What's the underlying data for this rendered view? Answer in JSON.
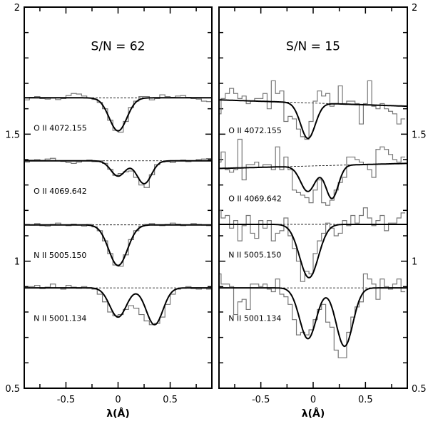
{
  "chart_data": [
    {
      "type": "line",
      "title": "S/N = 62",
      "xlabel": "λ(Å)",
      "xlim": [
        -0.9,
        0.9
      ],
      "ylim": [
        0.5,
        2
      ],
      "xticks": [
        "-0.5",
        "0",
        "0.5"
      ],
      "yticks": [
        "0.5",
        "1",
        "1.5",
        "2"
      ],
      "grid": false,
      "bin_width": 0.05,
      "spectra": [
        {
          "label": "O II 4072.155",
          "continuum": [
            1.643,
            1.643
          ],
          "fit_lines": [
            {
              "center": 0.0,
              "depth": 0.13,
              "sigma": 0.085
            }
          ],
          "observed": [
            1.635,
            1.645,
            1.648,
            1.64,
            1.638,
            1.642,
            1.636,
            1.64,
            1.652,
            1.66,
            1.658,
            1.65,
            1.642,
            1.637,
            1.625,
            1.6,
            1.555,
            1.515,
            1.508,
            1.55,
            1.605,
            1.63,
            1.648,
            1.648,
            1.635,
            1.64,
            1.655,
            1.648,
            1.645,
            1.65,
            1.652,
            1.645,
            1.64,
            1.638,
            1.63,
            1.628
          ]
        },
        {
          "label": "O II 4069.642",
          "continuum": [
            1.395,
            1.395
          ],
          "fit_lines": [
            {
              "center": 0.0,
              "depth": 0.06,
              "sigma": 0.07
            },
            {
              "center": 0.25,
              "depth": 0.09,
              "sigma": 0.07
            }
          ],
          "observed": [
            1.39,
            1.398,
            1.4,
            1.397,
            1.402,
            1.405,
            1.395,
            1.393,
            1.388,
            1.385,
            1.39,
            1.395,
            1.398,
            1.392,
            1.395,
            1.385,
            1.362,
            1.338,
            1.345,
            1.352,
            1.355,
            1.33,
            1.3,
            1.29,
            1.34,
            1.38,
            1.39,
            1.392,
            1.388,
            1.396,
            1.398,
            1.392,
            1.395,
            1.4,
            1.402,
            1.404
          ]
        },
        {
          "label": "N II 5005.150",
          "continuum": [
            1.143,
            1.143
          ],
          "fit_lines": [
            {
              "center": 0.0,
              "depth": 0.16,
              "sigma": 0.09
            }
          ],
          "observed": [
            1.145,
            1.142,
            1.148,
            1.14,
            1.138,
            1.145,
            1.15,
            1.143,
            1.14,
            1.146,
            1.142,
            1.138,
            1.145,
            1.135,
            1.12,
            1.08,
            1.03,
            0.985,
            0.98,
            1.025,
            1.085,
            1.12,
            1.138,
            1.145,
            1.148,
            1.142,
            1.14,
            1.145,
            1.15,
            1.146,
            1.14,
            1.143,
            1.148,
            1.145,
            1.142,
            1.14
          ]
        },
        {
          "label": "N II 5001.134",
          "continuum": [
            0.895,
            0.895
          ],
          "fit_lines": [
            {
              "center": 0.0,
              "depth": 0.115,
              "sigma": 0.08
            },
            {
              "center": 0.35,
              "depth": 0.145,
              "sigma": 0.08
            }
          ],
          "observed": [
            0.895,
            0.9,
            0.905,
            0.892,
            0.898,
            0.91,
            0.895,
            0.89,
            0.905,
            0.898,
            0.893,
            0.9,
            0.896,
            0.89,
            0.87,
            0.84,
            0.8,
            0.785,
            0.79,
            0.81,
            0.825,
            0.815,
            0.79,
            0.765,
            0.75,
            0.755,
            0.78,
            0.83,
            0.87,
            0.89,
            0.895,
            0.9,
            0.892,
            0.89,
            0.893,
            0.89
          ]
        }
      ]
    },
    {
      "type": "line",
      "title": "S/N = 15",
      "xlabel": "λ(Å)",
      "xlim": [
        -0.9,
        0.9
      ],
      "ylim": [
        0.5,
        2
      ],
      "xticks": [
        "-0.5",
        "0",
        "0.5"
      ],
      "yticks": [
        "0.5",
        "1",
        "1.5",
        "2"
      ],
      "grid": false,
      "bin_width": 0.04,
      "spectra": [
        {
          "label": "O II 4072.155",
          "continuum": [
            1.635,
            1.61
          ],
          "fit_lines": [
            {
              "center": -0.05,
              "depth": 0.14,
              "sigma": 0.07
            }
          ],
          "observed": [
            1.58,
            1.64,
            1.66,
            1.68,
            1.66,
            1.64,
            1.65,
            1.62,
            1.63,
            1.64,
            1.64,
            1.66,
            1.6,
            1.71,
            1.66,
            1.67,
            1.55,
            1.57,
            1.56,
            1.52,
            1.49,
            1.48,
            1.55,
            1.63,
            1.67,
            1.65,
            1.66,
            1.61,
            1.62,
            1.69,
            1.62,
            1.63,
            1.63,
            1.62,
            1.54,
            1.62,
            1.71,
            1.61,
            1.6,
            1.62,
            1.6,
            1.59,
            1.58,
            1.54,
            1.56
          ]
        },
        {
          "label": "O II 4069.642",
          "continuum": [
            1.365,
            1.385
          ],
          "fit_lines": [
            {
              "center": -0.05,
              "depth": 0.1,
              "sigma": 0.07
            },
            {
              "center": 0.18,
              "depth": 0.13,
              "sigma": 0.06
            }
          ],
          "observed": [
            1.39,
            1.43,
            1.36,
            1.35,
            1.36,
            1.48,
            1.32,
            1.38,
            1.38,
            1.39,
            1.37,
            1.38,
            1.38,
            1.36,
            1.45,
            1.36,
            1.41,
            1.36,
            1.28,
            1.27,
            1.26,
            1.25,
            1.23,
            1.28,
            1.32,
            1.23,
            1.22,
            1.24,
            1.28,
            1.31,
            1.33,
            1.41,
            1.41,
            1.4,
            1.39,
            1.38,
            1.36,
            1.33,
            1.44,
            1.45,
            1.44,
            1.42,
            1.4,
            1.39,
            1.41
          ]
        },
        {
          "label": "N II 5005.150",
          "continuum": [
            1.145,
            1.145
          ],
          "fit_lines": [
            {
              "center": -0.04,
              "depth": 0.21,
              "sigma": 0.09
            }
          ],
          "observed": [
            1.2,
            1.17,
            1.18,
            1.13,
            1.16,
            1.08,
            1.14,
            1.18,
            1.11,
            1.09,
            1.16,
            1.13,
            1.16,
            1.08,
            1.11,
            1.12,
            1.17,
            1.1,
            1.05,
            1.0,
            0.92,
            0.96,
            0.95,
            1.03,
            1.08,
            1.11,
            1.15,
            1.13,
            1.1,
            1.11,
            1.16,
            1.14,
            1.18,
            1.15,
            1.18,
            1.21,
            1.17,
            1.14,
            1.16,
            1.18,
            1.12,
            1.15,
            1.15,
            1.17,
            1.19
          ]
        },
        {
          "label": "N II 5001.134",
          "continuum": [
            0.895,
            0.895
          ],
          "fit_lines": [
            {
              "center": -0.05,
              "depth": 0.2,
              "sigma": 0.08
            },
            {
              "center": 0.3,
              "depth": 0.23,
              "sigma": 0.08
            }
          ],
          "observed": [
            0.95,
            0.91,
            0.91,
            0.9,
            0.79,
            0.84,
            0.85,
            0.81,
            0.91,
            0.91,
            0.9,
            0.91,
            0.89,
            0.88,
            0.93,
            0.87,
            0.86,
            0.83,
            0.77,
            0.71,
            0.72,
            0.71,
            0.73,
            0.77,
            0.81,
            0.83,
            0.76,
            0.74,
            0.65,
            0.62,
            0.62,
            0.72,
            0.78,
            0.82,
            0.84,
            0.95,
            0.93,
            0.91,
            0.85,
            0.93,
            0.9,
            0.89,
            0.91,
            0.93,
            0.88
          ]
        }
      ]
    }
  ]
}
